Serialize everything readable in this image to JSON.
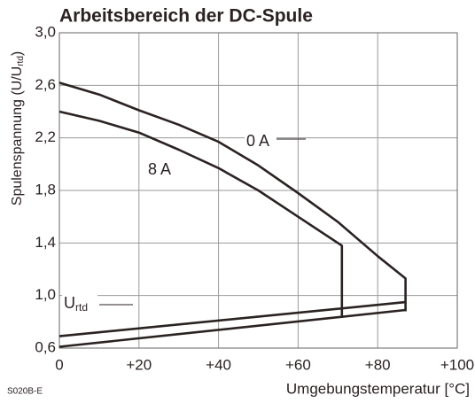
{
  "chart_data": {
    "type": "line",
    "title": "Arbeitsbereich der DC-Spule",
    "xlabel": "Umgebungstemperatur [°C]",
    "ylabel": {
      "text": "Spulenspannung (U/U",
      "sub": "rtd",
      "end": ")"
    },
    "code": "S020B-E",
    "xlim": [
      0,
      100
    ],
    "ylim": [
      0.6,
      3.0
    ],
    "xticks": [
      0,
      {
        "value": 20,
        "label": "+20"
      },
      {
        "value": 40,
        "label": "+40"
      },
      {
        "value": 60,
        "label": "+60"
      },
      {
        "value": 80,
        "label": "+80"
      },
      {
        "value": 100,
        "label": "+100"
      }
    ],
    "yticks": [
      {
        "value": 0.6,
        "label": "0,6"
      },
      {
        "value": 1.0,
        "label": "1,0"
      },
      {
        "value": 1.4,
        "label": "1,4"
      },
      {
        "value": 1.8,
        "label": "1,8"
      },
      {
        "value": 2.2,
        "label": "2,2"
      },
      {
        "value": 2.6,
        "label": "2,6"
      },
      {
        "value": 3.0,
        "label": "3,0"
      }
    ],
    "grid": true,
    "color": "#2b2222",
    "series": [
      {
        "name": "0 A",
        "x": [
          0,
          10,
          20,
          30,
          40,
          50,
          60,
          70,
          80,
          87,
          87
        ],
        "values": [
          2.62,
          2.53,
          2.41,
          2.3,
          2.17,
          1.99,
          1.78,
          1.56,
          1.3,
          1.13,
          0.88
        ]
      },
      {
        "name": "8 A",
        "x": [
          0,
          10,
          20,
          30,
          40,
          50,
          60,
          71,
          71
        ],
        "values": [
          2.4,
          2.33,
          2.24,
          2.11,
          1.97,
          1.8,
          1.6,
          1.38,
          0.83
        ]
      },
      {
        "x": [
          0,
          87
        ],
        "values": [
          0.69,
          0.95
        ]
      },
      {
        "x": [
          0,
          87
        ],
        "values": [
          0.61,
          0.89
        ]
      }
    ],
    "annotation": {
      "text": "U",
      "sub": "rtd"
    }
  }
}
